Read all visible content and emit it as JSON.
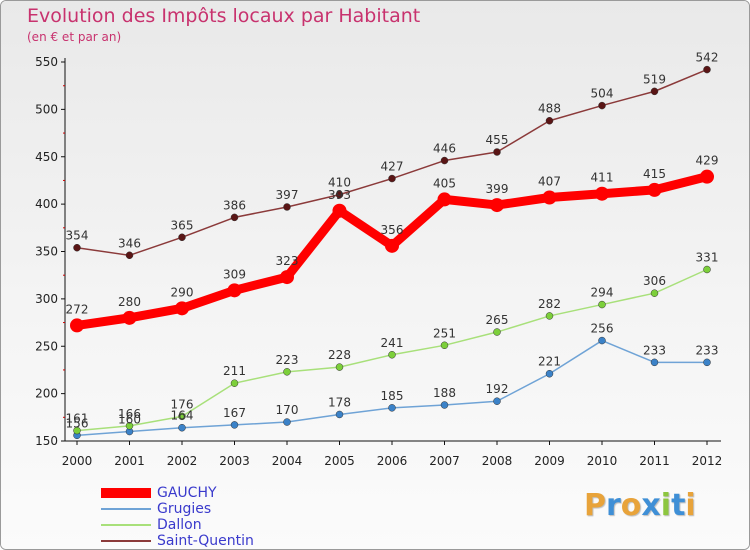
{
  "header": {
    "title": "Evolution des Impôts locaux par Habitant",
    "subtitle": "(en € et par an)"
  },
  "logo": {
    "text": "Proxiti",
    "letters": [
      {
        "ch": "P",
        "color": "#e8a33a"
      },
      {
        "ch": "r",
        "color": "#3f8fd6"
      },
      {
        "ch": "o",
        "color": "#e8a33a"
      },
      {
        "ch": "x",
        "color": "#3f8fd6"
      },
      {
        "ch": "i",
        "color": "#8dc63f"
      },
      {
        "ch": "t",
        "color": "#3f8fd6"
      },
      {
        "ch": "i",
        "color": "#e8a33a"
      }
    ]
  },
  "chart_data": {
    "type": "line",
    "title": "Evolution des Impôts locaux par Habitant",
    "subtitle": "(en € et par an)",
    "xlabel": "",
    "ylabel": "",
    "x": [
      "2000",
      "2001",
      "2002",
      "2003",
      "2004",
      "2005",
      "2006",
      "2007",
      "2008",
      "2009",
      "2010",
      "2011",
      "2012"
    ],
    "ylim": [
      150,
      550
    ],
    "yticks": [
      150,
      200,
      250,
      300,
      350,
      400,
      450,
      500,
      550
    ],
    "grid": false,
    "legend_position": "bottom-left",
    "series": [
      {
        "name": "GAUCHY",
        "color": "#ff0000",
        "point_color": "#ff0000",
        "emphasis": true,
        "values": [
          272,
          280,
          290,
          309,
          323,
          393,
          356,
          405,
          399,
          407,
          411,
          415,
          429
        ],
        "labels": [
          "272",
          "280",
          "290",
          "309",
          "323",
          "393",
          "356",
          "405",
          "399",
          "407",
          "411",
          "415",
          "429"
        ]
      },
      {
        "name": "Grugies",
        "color": "#6fa3d6",
        "point_color": "#3b82c8",
        "emphasis": false,
        "values": [
          156,
          160,
          164,
          167,
          170,
          178,
          185,
          188,
          192,
          221,
          256,
          233,
          233
        ],
        "labels": [
          "156",
          "160",
          "164",
          "167",
          "170",
          "178",
          "185",
          "188",
          "192",
          "221",
          "256",
          "233",
          "233"
        ]
      },
      {
        "name": "Dallon",
        "color": "#a8e07a",
        "point_color": "#7ccf3a",
        "emphasis": false,
        "values": [
          161,
          166,
          176,
          211,
          223,
          228,
          241,
          251,
          265,
          282,
          294,
          306,
          331
        ],
        "labels": [
          "161",
          "166",
          "176",
          "211",
          "223",
          "228",
          "241",
          "251",
          "265",
          "282",
          "294",
          "306",
          "331"
        ]
      },
      {
        "name": "Saint-Quentin",
        "color": "#8b3a3a",
        "point_color": "#5a1515",
        "emphasis": false,
        "values": [
          354,
          346,
          365,
          386,
          397,
          410,
          427,
          446,
          455,
          488,
          504,
          519,
          542
        ],
        "labels": [
          "354",
          "346",
          "365",
          "386",
          "397",
          "410",
          "427",
          "446",
          "455",
          "488",
          "504",
          "519",
          "542"
        ]
      }
    ]
  }
}
